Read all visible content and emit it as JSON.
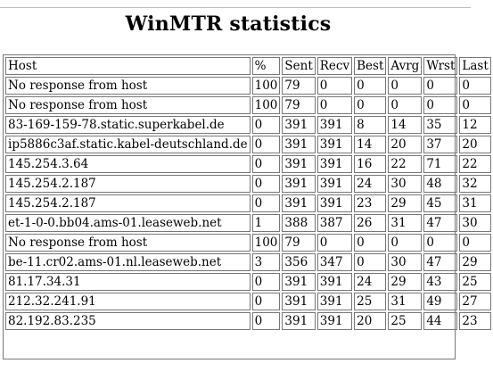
{
  "title": "WinMTR statistics",
  "columns": [
    "Host",
    "%",
    "Sent",
    "Recv",
    "Best",
    "Avrg",
    "Wrst",
    "Last"
  ],
  "rows": [
    [
      "No response from host",
      "100",
      "79",
      "0",
      "0",
      "0",
      "0",
      "0"
    ],
    [
      "No response from host",
      "100",
      "79",
      "0",
      "0",
      "0",
      "0",
      "0"
    ],
    [
      "83-169-159-78.static.superkabel.de",
      "0",
      "391",
      "391",
      "8",
      "14",
      "35",
      "12"
    ],
    [
      "ip5886c3af.static.kabel-deutschland.de",
      "0",
      "391",
      "391",
      "14",
      "20",
      "37",
      "20"
    ],
    [
      "145.254.3.64",
      "0",
      "391",
      "391",
      "16",
      "22",
      "71",
      "22"
    ],
    [
      "145.254.2.187",
      "0",
      "391",
      "391",
      "24",
      "30",
      "48",
      "32"
    ],
    [
      "145.254.2.187",
      "0",
      "391",
      "391",
      "23",
      "29",
      "45",
      "31"
    ],
    [
      "et-1-0-0.bb04.ams-01.leaseweb.net",
      "1",
      "388",
      "387",
      "26",
      "31",
      "47",
      "30"
    ],
    [
      "No response from host",
      "100",
      "79",
      "0",
      "0",
      "0",
      "0",
      "0"
    ],
    [
      "be-11.cr02.ams-01.nl.leaseweb.net",
      "3",
      "356",
      "347",
      "0",
      "30",
      "47",
      "29"
    ],
    [
      "81.17.34.31",
      "0",
      "391",
      "391",
      "24",
      "29",
      "43",
      "25"
    ],
    [
      "212.32.241.91",
      "0",
      "391",
      "391",
      "25",
      "31",
      "49",
      "27"
    ],
    [
      "82.192.83.235",
      "0",
      "391",
      "391",
      "20",
      "25",
      "44",
      "23"
    ]
  ]
}
